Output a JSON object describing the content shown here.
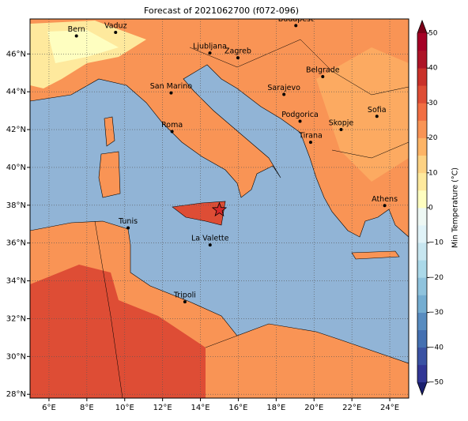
{
  "title": "Forecast of 2021062700 (f072-096)",
  "map": {
    "xlim": [
      5,
      25
    ],
    "ylim": [
      27.8,
      47.85
    ],
    "xticks": [
      {
        "value": 6,
        "label": "6°E"
      },
      {
        "value": 8,
        "label": "8°E"
      },
      {
        "value": 10,
        "label": "10°E"
      },
      {
        "value": 12,
        "label": "12°E"
      },
      {
        "value": 14,
        "label": "14°E"
      },
      {
        "value": 16,
        "label": "16°E"
      },
      {
        "value": 18,
        "label": "18°E"
      },
      {
        "value": 20,
        "label": "20°E"
      },
      {
        "value": 22,
        "label": "22°E"
      },
      {
        "value": 24,
        "label": "24°E"
      }
    ],
    "yticks": [
      {
        "value": 28,
        "label": "28°N"
      },
      {
        "value": 30,
        "label": "30°N"
      },
      {
        "value": 32,
        "label": "32°N"
      },
      {
        "value": 34,
        "label": "34°N"
      },
      {
        "value": 36,
        "label": "36°N"
      },
      {
        "value": 38,
        "label": "38°N"
      },
      {
        "value": 40,
        "label": "40°N"
      },
      {
        "value": 42,
        "label": "42°N"
      },
      {
        "value": 44,
        "label": "44°N"
      },
      {
        "value": 46,
        "label": "46°N"
      }
    ],
    "grid": true,
    "cities": [
      {
        "name": "Bern",
        "lon": 7.45,
        "lat": 46.95
      },
      {
        "name": "Vaduz",
        "lon": 9.52,
        "lat": 47.14
      },
      {
        "name": "Budapest",
        "lon": 19.04,
        "lat": 47.5
      },
      {
        "name": "Ljubljana",
        "lon": 14.5,
        "lat": 46.05
      },
      {
        "name": "Zagreb",
        "lon": 15.98,
        "lat": 45.8
      },
      {
        "name": "San Marino",
        "lon": 12.45,
        "lat": 43.94
      },
      {
        "name": "Belgrade",
        "lon": 20.46,
        "lat": 44.8
      },
      {
        "name": "Sarajevo",
        "lon": 18.41,
        "lat": 43.86
      },
      {
        "name": "Sofia",
        "lon": 23.32,
        "lat": 42.7
      },
      {
        "name": "Roma",
        "lon": 12.5,
        "lat": 41.9
      },
      {
        "name": "Podgorica",
        "lon": 19.26,
        "lat": 42.44
      },
      {
        "name": "Skopje",
        "lon": 21.43,
        "lat": 42.0
      },
      {
        "name": "Tirana",
        "lon": 19.82,
        "lat": 41.33
      },
      {
        "name": "Athens",
        "lon": 23.73,
        "lat": 37.98
      },
      {
        "name": "Tunis",
        "lon": 10.18,
        "lat": 36.8
      },
      {
        "name": "La Valette",
        "lon": 14.51,
        "lat": 35.9
      },
      {
        "name": "Tripoli",
        "lon": 13.18,
        "lat": 32.89
      }
    ],
    "marker": {
      "lon": 15.0,
      "lat": 37.75,
      "color": "#d62728"
    }
  },
  "colorbar": {
    "label": "Min Temperature (°C)",
    "lim": [
      -50,
      50
    ],
    "ticks": [
      {
        "value": -50,
        "label": "−50"
      },
      {
        "value": -40,
        "label": "−40"
      },
      {
        "value": -30,
        "label": "−30"
      },
      {
        "value": -20,
        "label": "−20"
      },
      {
        "value": -10,
        "label": "−10"
      },
      0,
      10,
      20,
      30,
      40,
      50
    ],
    "colors": [
      "#313695",
      "#3a52a3",
      "#4470b1",
      "#588cc0",
      "#74add1",
      "#8fc3dd",
      "#abd9e9",
      "#c7e6f0",
      "#e0f3f8",
      "#eef8f4",
      "#fefec0",
      "#fee99d",
      "#fdd283",
      "#fdb466",
      "#f99455",
      "#f16e43",
      "#de4d35",
      "#c9312a",
      "#ad1427",
      "#a50026"
    ],
    "under": "#1a1f6e",
    "over": "#7a0018"
  }
}
